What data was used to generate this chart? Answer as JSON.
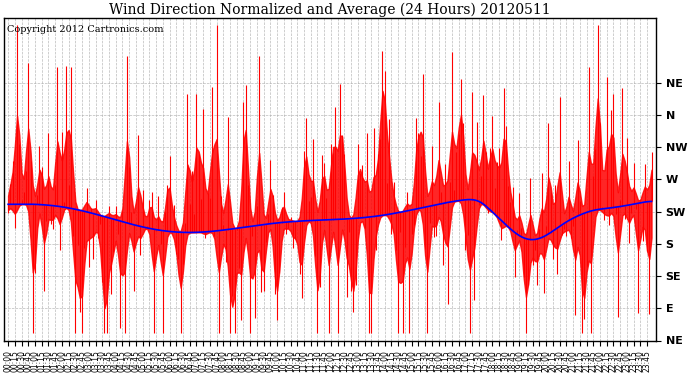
{
  "title": "Wind Direction Normalized and Average (24 Hours) 20120511",
  "copyright_text": "Copyright 2012 Cartronics.com",
  "y_ticks": [
    360,
    337.5,
    315,
    292.5,
    270,
    247.5,
    225,
    202.5,
    180
  ],
  "y_tick_labels": [
    "NE",
    "N",
    "NW",
    "W",
    "SW",
    "S",
    "SE",
    "E",
    "NE"
  ],
  "ylim": [
    180,
    405
  ],
  "background_color": "#ffffff",
  "grid_color": "#aaaaaa",
  "red_color": "#ff0000",
  "blue_color": "#0000ff",
  "title_fontsize": 10,
  "copyright_fontsize": 7,
  "x_tick_fontsize": 5.5,
  "y_tick_fontsize": 8,
  "n_points": 288
}
